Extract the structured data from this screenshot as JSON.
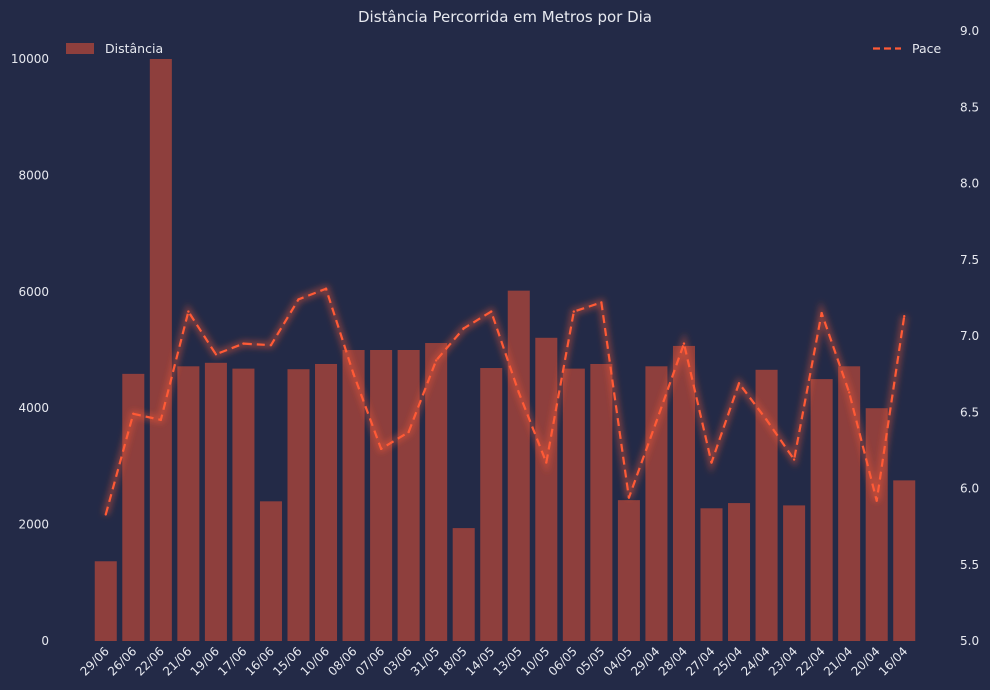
{
  "chart_data": {
    "type": "bar",
    "title": "Distância Percorrida em Metros por Dia",
    "xlabel": "",
    "ylabel": "",
    "categories": [
      "29/06",
      "26/06",
      "22/06",
      "21/06",
      "19/06",
      "17/06",
      "16/06",
      "15/06",
      "10/06",
      "08/06",
      "07/06",
      "03/06",
      "31/05",
      "18/05",
      "14/05",
      "13/05",
      "10/05",
      "06/05",
      "05/05",
      "04/05",
      "29/04",
      "28/04",
      "27/04",
      "25/04",
      "24/04",
      "23/04",
      "22/04",
      "21/04",
      "20/04",
      "16/04"
    ],
    "series": [
      {
        "name": "Distância",
        "type": "bar",
        "axis": "left",
        "color": "#8e3f3d",
        "values": [
          1370,
          4590,
          10000,
          4720,
          4780,
          4680,
          2400,
          4670,
          4760,
          5000,
          5000,
          5000,
          5120,
          1940,
          4690,
          6020,
          5210,
          4680,
          4760,
          2420,
          4720,
          5070,
          2280,
          2370,
          4660,
          2330,
          4500,
          4720,
          4000,
          2760
        ]
      },
      {
        "name": "Pace",
        "type": "line",
        "axis": "right",
        "style": "dashed",
        "color": "#ff5a36",
        "values": [
          5.83,
          6.49,
          6.45,
          7.16,
          6.88,
          6.95,
          6.94,
          7.24,
          7.31,
          6.75,
          6.26,
          6.37,
          6.84,
          7.05,
          7.16,
          6.63,
          6.17,
          7.16,
          7.22,
          5.94,
          6.44,
          6.95,
          6.17,
          6.69,
          6.45,
          6.19,
          7.15,
          6.63,
          5.92,
          7.13
        ]
      }
    ],
    "y_left": {
      "ticks": [
        0,
        2000,
        4000,
        6000,
        8000,
        10000
      ],
      "ylim": [
        0,
        10500
      ]
    },
    "y_right": {
      "ticks": [
        5.0,
        5.5,
        6.0,
        6.5,
        7.0,
        7.5,
        8.0,
        8.5,
        9.0
      ],
      "tick_labels": [
        "5.0",
        "5.5",
        "6.0",
        "6.5",
        "7.0",
        "7.5",
        "8.0",
        "8.5",
        "9.0"
      ],
      "ylim": [
        5.0,
        9.0
      ]
    },
    "legend": [
      {
        "label": "Distância",
        "placement": "top-left"
      },
      {
        "label": "Pace",
        "placement": "top-right"
      }
    ],
    "grid": false,
    "colors": {
      "background": "#232a47",
      "text": "#e6e8ef",
      "bar": "#8e3f3d",
      "line": "#ff5a36"
    }
  }
}
